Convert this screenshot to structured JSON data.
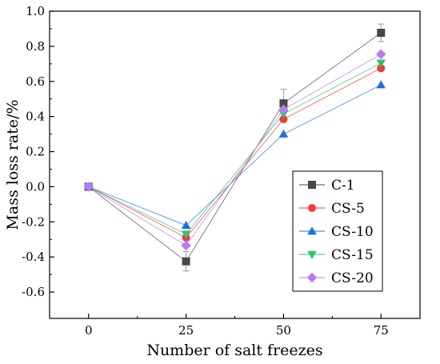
{
  "chart_data": {
    "type": "line",
    "title": "",
    "xlabel": "Number of salt freezes",
    "ylabel": "Mass loss rate/%",
    "x": [
      0,
      25,
      50,
      75
    ],
    "xlim": [
      -10,
      85
    ],
    "ylim": [
      -0.75,
      1.0
    ],
    "xticks": [
      0,
      25,
      50,
      75
    ],
    "yticks": [
      -0.6,
      -0.4,
      -0.2,
      0.0,
      0.2,
      0.4,
      0.6,
      0.8,
      1.0
    ],
    "grid": false,
    "legend_position": "bottom-right",
    "series": [
      {
        "name": "C-1",
        "values": [
          0.0,
          -0.425,
          0.475,
          0.877
        ],
        "errors": [
          0.0,
          0.055,
          0.08,
          0.05
        ],
        "color": "#474747",
        "marker": "square"
      },
      {
        "name": "CS-5",
        "values": [
          0.0,
          -0.29,
          0.385,
          0.675
        ],
        "errors": [
          0.0,
          0.0,
          0.0,
          0.0
        ],
        "color": "#ee3b3b",
        "marker": "circle"
      },
      {
        "name": "CS-10",
        "values": [
          0.0,
          -0.22,
          0.3,
          0.58
        ],
        "errors": [
          0.0,
          0.0,
          0.0,
          0.0
        ],
        "color": "#1e6fe0",
        "marker": "triangle-up"
      },
      {
        "name": "CS-15",
        "values": [
          0.0,
          -0.27,
          0.415,
          0.705
        ],
        "errors": [
          0.0,
          0.0,
          0.0,
          0.0
        ],
        "color": "#2ec26e",
        "marker": "triangle-down"
      },
      {
        "name": "CS-20",
        "values": [
          0.0,
          -0.335,
          0.44,
          0.755
        ],
        "errors": [
          0.0,
          0.0,
          0.0,
          0.0
        ],
        "color": "#b77cf2",
        "marker": "diamond"
      }
    ]
  }
}
